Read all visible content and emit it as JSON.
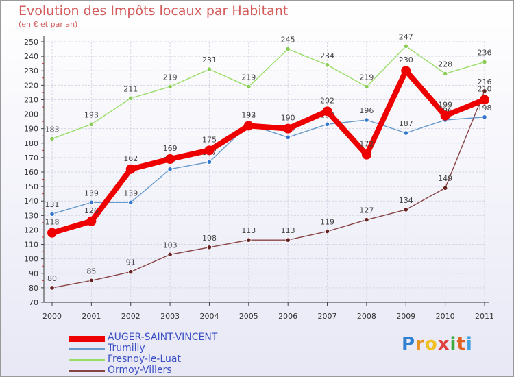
{
  "chart_data": {
    "type": "line",
    "title": "Evolution des Impôts locaux par Habitant",
    "subtitle": "(en € et par an)",
    "xlabel": "",
    "ylabel": "",
    "ylim": [
      70,
      250
    ],
    "y_ticks": [
      70,
      80,
      90,
      100,
      110,
      120,
      130,
      140,
      150,
      160,
      170,
      180,
      190,
      200,
      210,
      220,
      230,
      240,
      250
    ],
    "categories": [
      "2000",
      "2001",
      "2002",
      "2003",
      "2004",
      "2005",
      "2006",
      "2007",
      "2008",
      "2009",
      "2010",
      "2011"
    ],
    "grid": true,
    "legend_position": "bottom-left",
    "series": [
      {
        "name": "Fresnoy-le-Luat",
        "color": "#99dd66",
        "marker_color": "#88cc55",
        "bold": false,
        "values": [
          183,
          193,
          211,
          219,
          231,
          219,
          245,
          234,
          219,
          247,
          228,
          236
        ]
      },
      {
        "name": "Trumilly",
        "color": "#6699cc",
        "marker_color": "#3377cc",
        "bold": false,
        "values": [
          131,
          139,
          139,
          162,
          167,
          193,
          184,
          193,
          196,
          187,
          196,
          198
        ]
      },
      {
        "name": "Ormoy-Villers",
        "color": "#884444",
        "marker_color": "#662222",
        "bold": false,
        "values": [
          80,
          85,
          91,
          103,
          108,
          113,
          113,
          119,
          127,
          134,
          149,
          216
        ]
      },
      {
        "name": "AUGER-SAINT-VINCENT",
        "color": "#ee0000",
        "marker_color": "#ee0000",
        "bold": true,
        "values": [
          118,
          126,
          162,
          169,
          175,
          192,
          190,
          202,
          172,
          230,
          199,
          210
        ]
      }
    ]
  },
  "legend": [
    {
      "label": "AUGER-SAINT-VINCENT",
      "color": "#ee0000"
    },
    {
      "label": "Trumilly",
      "color": "#6699cc"
    },
    {
      "label": "Fresnoy-le-Luat",
      "color": "#99dd66"
    },
    {
      "label": "Ormoy-Villers",
      "color": "#884444"
    }
  ],
  "logo": {
    "letters": [
      "P",
      "r",
      "o",
      "x",
      "i",
      "t",
      "i"
    ],
    "colors": [
      "#2f80d0",
      "#e89020",
      "#f0c020",
      "#e04040",
      "#3aaa3a",
      "#e06020",
      "#40a0e0"
    ]
  }
}
